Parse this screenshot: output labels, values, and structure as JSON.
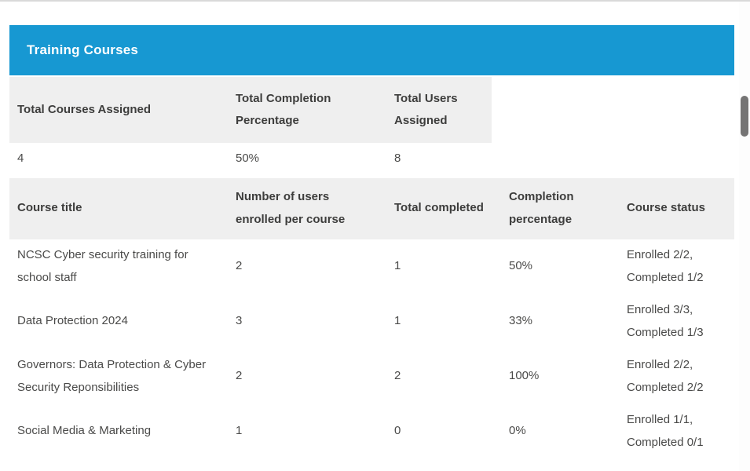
{
  "panel": {
    "title": "Training Courses",
    "accent_color": "#1798d2"
  },
  "summary": {
    "headers": [
      "Total Courses Assigned",
      "Total Completion Percentage",
      "Total Users Assigned"
    ],
    "values": [
      "4",
      "50%",
      "8"
    ]
  },
  "courses": {
    "headers": [
      "Course title",
      "Number of users enrolled per course",
      "Total completed",
      "Completion percentage",
      "Course status"
    ],
    "rows": [
      {
        "title": "NCSC Cyber security training for school staff",
        "enrolled": "2",
        "completed": "1",
        "percentage": "50%",
        "status": "Enrolled 2/2, Completed 1/2"
      },
      {
        "title": "Data Protection 2024",
        "enrolled": "3",
        "completed": "1",
        "percentage": "33%",
        "status": "Enrolled 3/3, Completed 1/3"
      },
      {
        "title": "Governors: Data Protection & Cyber Security Reponsibilities",
        "enrolled": "2",
        "completed": "2",
        "percentage": "100%",
        "status": "Enrolled 2/2, Completed 2/2"
      },
      {
        "title": "Social Media & Marketing",
        "enrolled": "1",
        "completed": "0",
        "percentage": "0%",
        "status": "Enrolled 1/1, Completed 0/1"
      }
    ]
  }
}
